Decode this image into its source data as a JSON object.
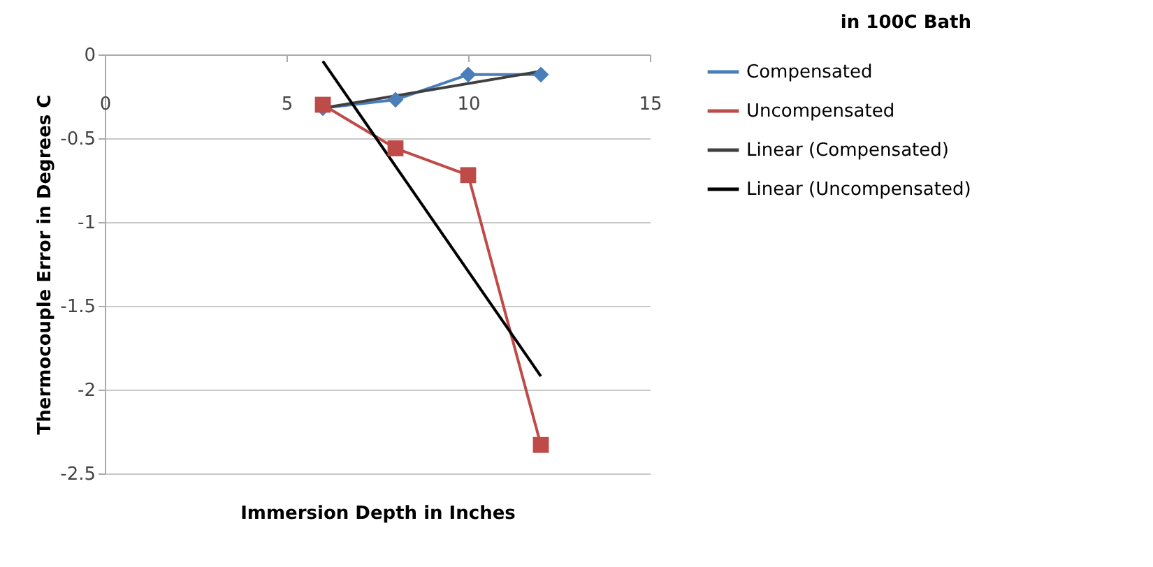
{
  "chart_data": {
    "type": "line",
    "title": "in 100C Bath",
    "xlabel": "Immersion Depth in Inches",
    "ylabel": "Thermocouple Error in Degrees C",
    "xlim": [
      0,
      15
    ],
    "xticks": [
      0,
      5,
      10,
      15
    ],
    "ylim": [
      -2.5,
      0
    ],
    "yticks": [
      0,
      -0.5,
      -1,
      -1.5,
      -2,
      -2.5
    ],
    "grid": "y",
    "legend": "right",
    "series": [
      {
        "name": "Compensated",
        "color": "#4a7ebb",
        "marker": "diamond",
        "x": [
          6,
          8,
          10,
          12
        ],
        "values": [
          -0.32,
          -0.27,
          -0.12,
          -0.12
        ]
      },
      {
        "name": "Uncompensated",
        "color": "#be4b48",
        "marker": "square",
        "x": [
          6,
          8,
          10,
          12
        ],
        "values": [
          -0.3,
          -0.56,
          -0.72,
          -2.33
        ]
      },
      {
        "name": "Linear (Compensated)",
        "color": "#404040",
        "marker": "none",
        "x": [
          6,
          12
        ],
        "values": [
          -0.32,
          -0.1
        ]
      },
      {
        "name": "Linear (Uncompensated)",
        "color": "#000000",
        "marker": "none",
        "x": [
          6,
          12
        ],
        "values": [
          -0.04,
          -1.92
        ]
      }
    ]
  }
}
